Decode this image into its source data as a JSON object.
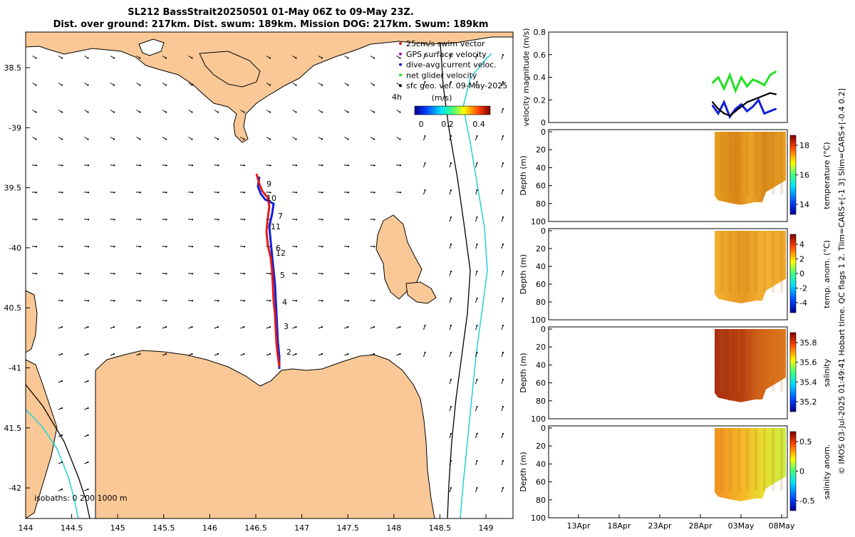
{
  "title": {
    "line1": "SL212 BassStrait20250501 01-May 06Z to 09-May 23Z.",
    "line2": "Dist. over ground: 217km. Dist. swum: 189km. Mission DOG: 217km. Swum: 189km"
  },
  "side_caption": "© IMOS 03-Jul-2025 01:49:41 Hobart time. QC flags 1  2. Tlim=CARS+[-1 3] Slim=CARS+[-0.4 0.2]",
  "colors": {
    "land": "#F9C896",
    "coast": "#000000",
    "iso200": "#000000",
    "iso1000": "#2CD3D6",
    "track_red": "#E11A1A",
    "track_blue": "#1020D8",
    "speed_green": "#21E121",
    "speed_blue": "#1020D8",
    "speed_black": "#000000"
  },
  "map": {
    "lon_ticks": [
      "144",
      "144.5",
      "145",
      "145.5",
      "146",
      "146.5",
      "147",
      "147.5",
      "148",
      "148.5",
      "149"
    ],
    "lat_ticks": [
      "38.5",
      "-39",
      "39.5",
      "-40",
      "40.5",
      "-41",
      "41.5",
      "-42"
    ],
    "legend": {
      "items": [
        "25cm/s swim vector",
        "GPS surface velocity",
        "dive-avg current veloc.",
        "net glider velocity",
        "sfc geo. vel. 09-May-2025"
      ],
      "colors": [
        "#E11A1A",
        "#B000C0",
        "#1020D8",
        "#21E121",
        "#000000"
      ],
      "hours_label": "4h",
      "colorbar_label": "(m/s)",
      "colorbar_ticks": [
        "0",
        "0.2",
        "0.4"
      ]
    },
    "isobaths_label": "isobaths: 0   200  1000 m",
    "waypoints": [
      "9",
      "10",
      "7",
      "11",
      "6",
      "12",
      "5",
      "4",
      "3",
      "2"
    ]
  },
  "chart_data": [
    {
      "type": "line",
      "title": "",
      "ylabel": "velocity magnitude (m/s)",
      "ylim": [
        0,
        0.8
      ],
      "yticks": [
        "0",
        "0.2",
        "0.4",
        "0.6",
        "0.8"
      ],
      "x_days": [
        28.5,
        29.5,
        30.5,
        31.5,
        32.5,
        33.5,
        34.5,
        35.5,
        36.5,
        37.5,
        38.5,
        39.5
      ],
      "series": [
        {
          "name": "net glider velocity",
          "values": [
            0.35,
            0.4,
            0.3,
            0.42,
            0.28,
            0.4,
            0.32,
            0.38,
            0.36,
            0.33,
            0.42,
            0.45
          ]
        },
        {
          "name": "dive-avg current veloc.",
          "values": [
            0.15,
            0.08,
            0.18,
            0.05,
            0.12,
            0.16,
            0.1,
            0.14,
            0.2,
            0.08,
            0.1,
            0.12
          ]
        },
        {
          "name": "sfc geo. vel.",
          "values": [
            0.18,
            0.12,
            0.08,
            0.06,
            0.1,
            0.14,
            0.18,
            0.2,
            0.22,
            0.24,
            0.26,
            0.25
          ]
        }
      ]
    },
    {
      "type": "heatmap",
      "ylabel": "Depth (m)",
      "colorbar_label": "temperature (°C)",
      "colorbar_ticks": [
        "14",
        "16",
        "18"
      ],
      "yticks": [
        "100",
        "80",
        "60",
        "40",
        "20",
        "0"
      ]
    },
    {
      "type": "heatmap",
      "ylabel": "Depth (m)",
      "colorbar_label": "temp. anom. (°C)",
      "colorbar_ticks": [
        "-4",
        "-2",
        "0",
        "2",
        "4"
      ],
      "yticks": [
        "100",
        "80",
        "60",
        "40",
        "20",
        "0"
      ]
    },
    {
      "type": "heatmap",
      "ylabel": "Depth (m)",
      "colorbar_label": "salinity",
      "colorbar_ticks": [
        "35.2",
        "35.4",
        "35.6",
        "35.8"
      ],
      "yticks": [
        "100",
        "80",
        "60",
        "40",
        "20",
        "0"
      ]
    },
    {
      "type": "heatmap",
      "ylabel": "Depth (m)",
      "colorbar_label": "salinity anom.",
      "colorbar_ticks": [
        "-0.5",
        "0",
        "0.5"
      ],
      "yticks": [
        "100",
        "80",
        "60",
        "40",
        "20",
        "0"
      ],
      "xticks": [
        "13Apr",
        "18Apr",
        "23Apr",
        "28Apr",
        "03May",
        "08May"
      ]
    }
  ]
}
